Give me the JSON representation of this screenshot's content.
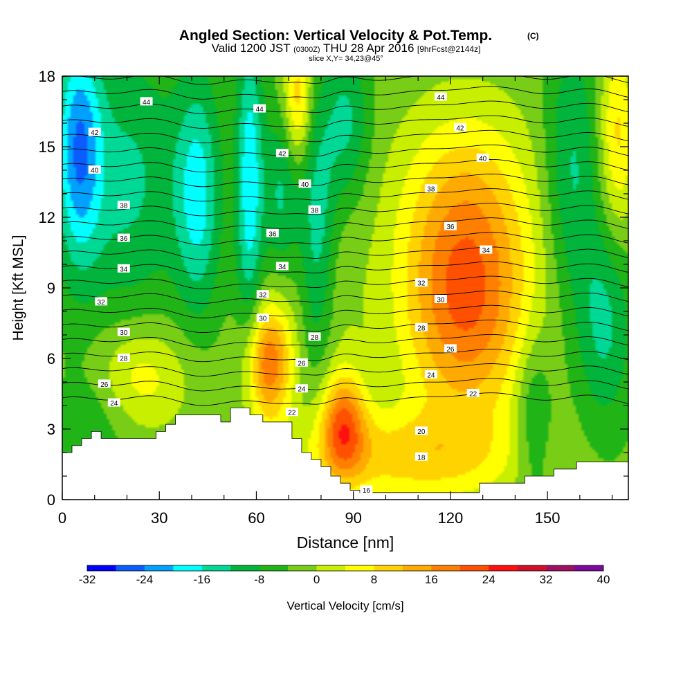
{
  "chart_data": {
    "type": "heatmap",
    "title": "Angled Section: Vertical Velocity & Pot.Temp.",
    "title_unit": "(C)",
    "subtitle": {
      "valid_prefix": "Valid 1200 JST",
      "zulu": "(0300Z)",
      "date": "THU 28 Apr 2016",
      "forecast": "[9hrFcst@2144z]"
    },
    "slice_label": "slice X,Y= 34,23@45°",
    "xlabel": "Distance [nm]",
    "ylabel": "Height [Kft MSL]",
    "xlim": [
      0,
      175
    ],
    "ylim": [
      0,
      18
    ],
    "x_ticks": [
      0,
      30,
      60,
      90,
      120,
      150
    ],
    "y_ticks": [
      0,
      3,
      6,
      9,
      12,
      15,
      18
    ],
    "colorbar": {
      "label": "Vertical Velocity [cm/s]",
      "min": -32,
      "max": 40,
      "step": 4,
      "ticks": [
        -32,
        -24,
        -16,
        -8,
        0,
        8,
        16,
        24,
        32,
        40
      ],
      "colors": [
        "#0000ff",
        "#0a5cff",
        "#00a0ff",
        "#00ffff",
        "#00d896",
        "#00b43c",
        "#20b416",
        "#78cd16",
        "#c8ef00",
        "#ffff00",
        "#ffd300",
        "#ffaa00",
        "#ff8000",
        "#ff5000",
        "#ff1010",
        "#d01028",
        "#a01060",
        "#7a0a9c"
      ]
    },
    "velocity_features": [
      {
        "x": 64,
        "y": 5.8,
        "sx": 5,
        "sy": 1.8,
        "amp": 22
      },
      {
        "x": 87,
        "y": 3.2,
        "sx": 5,
        "sy": 1.6,
        "amp": 21
      },
      {
        "x": 125,
        "y": 8.0,
        "sx": 14,
        "sy": 3.5,
        "amp": 22
      },
      {
        "x": 125,
        "y": 13.0,
        "sx": 15,
        "sy": 3.0,
        "amp": 10
      },
      {
        "x": 73,
        "y": 17.0,
        "sx": 3,
        "sy": 2.0,
        "amp": 14
      },
      {
        "x": 22,
        "y": 5.2,
        "sx": 12,
        "sy": 1.6,
        "amp": 10
      },
      {
        "x": 105,
        "y": 1.8,
        "sx": 25,
        "sy": 1.4,
        "amp": 12
      },
      {
        "x": 172,
        "y": 15.5,
        "sx": 4,
        "sy": 3.0,
        "amp": 12
      },
      {
        "x": 80,
        "y": 9.0,
        "sx": 8,
        "sy": 3.0,
        "amp": 4
      },
      {
        "x": 5,
        "y": 15.0,
        "sx": 5,
        "sy": 3.5,
        "amp": -18
      },
      {
        "x": 20,
        "y": 13.5,
        "sx": 12,
        "sy": 4.0,
        "amp": -10
      },
      {
        "x": 42,
        "y": 13.0,
        "sx": 5,
        "sy": 3.5,
        "amp": -14
      },
      {
        "x": 58,
        "y": 13.5,
        "sx": 3,
        "sy": 4.5,
        "amp": -16
      },
      {
        "x": 68,
        "y": 13.0,
        "sx": 4,
        "sy": 2.5,
        "amp": -10
      },
      {
        "x": 79,
        "y": 11.0,
        "sx": 4,
        "sy": 4.0,
        "amp": -13
      },
      {
        "x": 88,
        "y": 16.0,
        "sx": 5,
        "sy": 2.5,
        "amp": -10
      },
      {
        "x": 158,
        "y": 14.0,
        "sx": 6,
        "sy": 4.0,
        "amp": -10
      },
      {
        "x": 168,
        "y": 7.5,
        "sx": 6,
        "sy": 3.0,
        "amp": -10
      },
      {
        "x": 146,
        "y": 3.5,
        "sx": 4,
        "sy": 2.5,
        "amp": -8
      },
      {
        "x": 10,
        "y": 4.0,
        "sx": 8,
        "sy": 2.0,
        "amp": -6
      }
    ],
    "velocity_background": -3,
    "terrain": [
      [
        0,
        2.0
      ],
      [
        3,
        2.0
      ],
      [
        3,
        2.3
      ],
      [
        6,
        2.3
      ],
      [
        6,
        2.6
      ],
      [
        9,
        2.6
      ],
      [
        9,
        2.9
      ],
      [
        12,
        2.9
      ],
      [
        12,
        2.6
      ],
      [
        29,
        2.6
      ],
      [
        29,
        2.9
      ],
      [
        32,
        2.9
      ],
      [
        32,
        3.2
      ],
      [
        35,
        3.2
      ],
      [
        35,
        3.6
      ],
      [
        49,
        3.6
      ],
      [
        49,
        3.3
      ],
      [
        52,
        3.3
      ],
      [
        52,
        3.9
      ],
      [
        58,
        3.9
      ],
      [
        58,
        3.6
      ],
      [
        62,
        3.6
      ],
      [
        62,
        3.3
      ],
      [
        71,
        3.3
      ],
      [
        71,
        2.6
      ],
      [
        74,
        2.6
      ],
      [
        74,
        2.0
      ],
      [
        77,
        2.0
      ],
      [
        77,
        1.7
      ],
      [
        80,
        1.7
      ],
      [
        80,
        1.4
      ],
      [
        83,
        1.4
      ],
      [
        83,
        1.0
      ],
      [
        86,
        1.0
      ],
      [
        86,
        0.7
      ],
      [
        89,
        0.7
      ],
      [
        89,
        0.4
      ],
      [
        92,
        0.4
      ],
      [
        92,
        0.3
      ],
      [
        129,
        0.3
      ],
      [
        129,
        0.7
      ],
      [
        143,
        0.7
      ],
      [
        143,
        1.0
      ],
      [
        152,
        1.0
      ],
      [
        152,
        1.3
      ],
      [
        159,
        1.3
      ],
      [
        159,
        1.6
      ],
      [
        175,
        1.6
      ]
    ],
    "theta_contours": {
      "min": 16,
      "max": 46,
      "step": 1,
      "base": 9.2,
      "scale": 0.62,
      "lapse": 1.6
    },
    "theta_labels": [
      {
        "text": "44",
        "x": 26,
        "y": 16.9
      },
      {
        "text": "42",
        "x": 10,
        "y": 15.6
      },
      {
        "text": "40",
        "x": 10,
        "y": 14.0
      },
      {
        "text": "38",
        "x": 19,
        "y": 12.5
      },
      {
        "text": "36",
        "x": 19,
        "y": 11.1
      },
      {
        "text": "34",
        "x": 19,
        "y": 9.8
      },
      {
        "text": "32",
        "x": 12,
        "y": 8.4
      },
      {
        "text": "30",
        "x": 19,
        "y": 7.1
      },
      {
        "text": "28",
        "x": 19,
        "y": 6.0
      },
      {
        "text": "26",
        "x": 13,
        "y": 4.9
      },
      {
        "text": "24",
        "x": 16,
        "y": 4.1
      },
      {
        "text": "44",
        "x": 61,
        "y": 16.6
      },
      {
        "text": "42",
        "x": 68,
        "y": 14.7
      },
      {
        "text": "40",
        "x": 75,
        "y": 13.4
      },
      {
        "text": "38",
        "x": 78,
        "y": 12.3
      },
      {
        "text": "36",
        "x": 65,
        "y": 11.3
      },
      {
        "text": "34",
        "x": 68,
        "y": 9.9
      },
      {
        "text": "32",
        "x": 62,
        "y": 8.7
      },
      {
        "text": "30",
        "x": 62,
        "y": 7.7
      },
      {
        "text": "28",
        "x": 78,
        "y": 6.9
      },
      {
        "text": "26",
        "x": 74,
        "y": 5.8
      },
      {
        "text": "24",
        "x": 74,
        "y": 4.7
      },
      {
        "text": "22",
        "x": 71,
        "y": 3.7
      },
      {
        "text": "16",
        "x": 94,
        "y": 0.4
      },
      {
        "text": "44",
        "x": 117,
        "y": 17.1
      },
      {
        "text": "42",
        "x": 123,
        "y": 15.8
      },
      {
        "text": "40",
        "x": 130,
        "y": 14.5
      },
      {
        "text": "38",
        "x": 114,
        "y": 13.2
      },
      {
        "text": "36",
        "x": 120,
        "y": 11.6
      },
      {
        "text": "34",
        "x": 131,
        "y": 10.6
      },
      {
        "text": "32",
        "x": 111,
        "y": 9.2
      },
      {
        "text": "30",
        "x": 117,
        "y": 8.5
      },
      {
        "text": "28",
        "x": 111,
        "y": 7.3
      },
      {
        "text": "26",
        "x": 120,
        "y": 6.4
      },
      {
        "text": "24",
        "x": 114,
        "y": 5.3
      },
      {
        "text": "22",
        "x": 127,
        "y": 4.5
      },
      {
        "text": "20",
        "x": 111,
        "y": 2.9
      },
      {
        "text": "18",
        "x": 111,
        "y": 1.8
      }
    ]
  }
}
